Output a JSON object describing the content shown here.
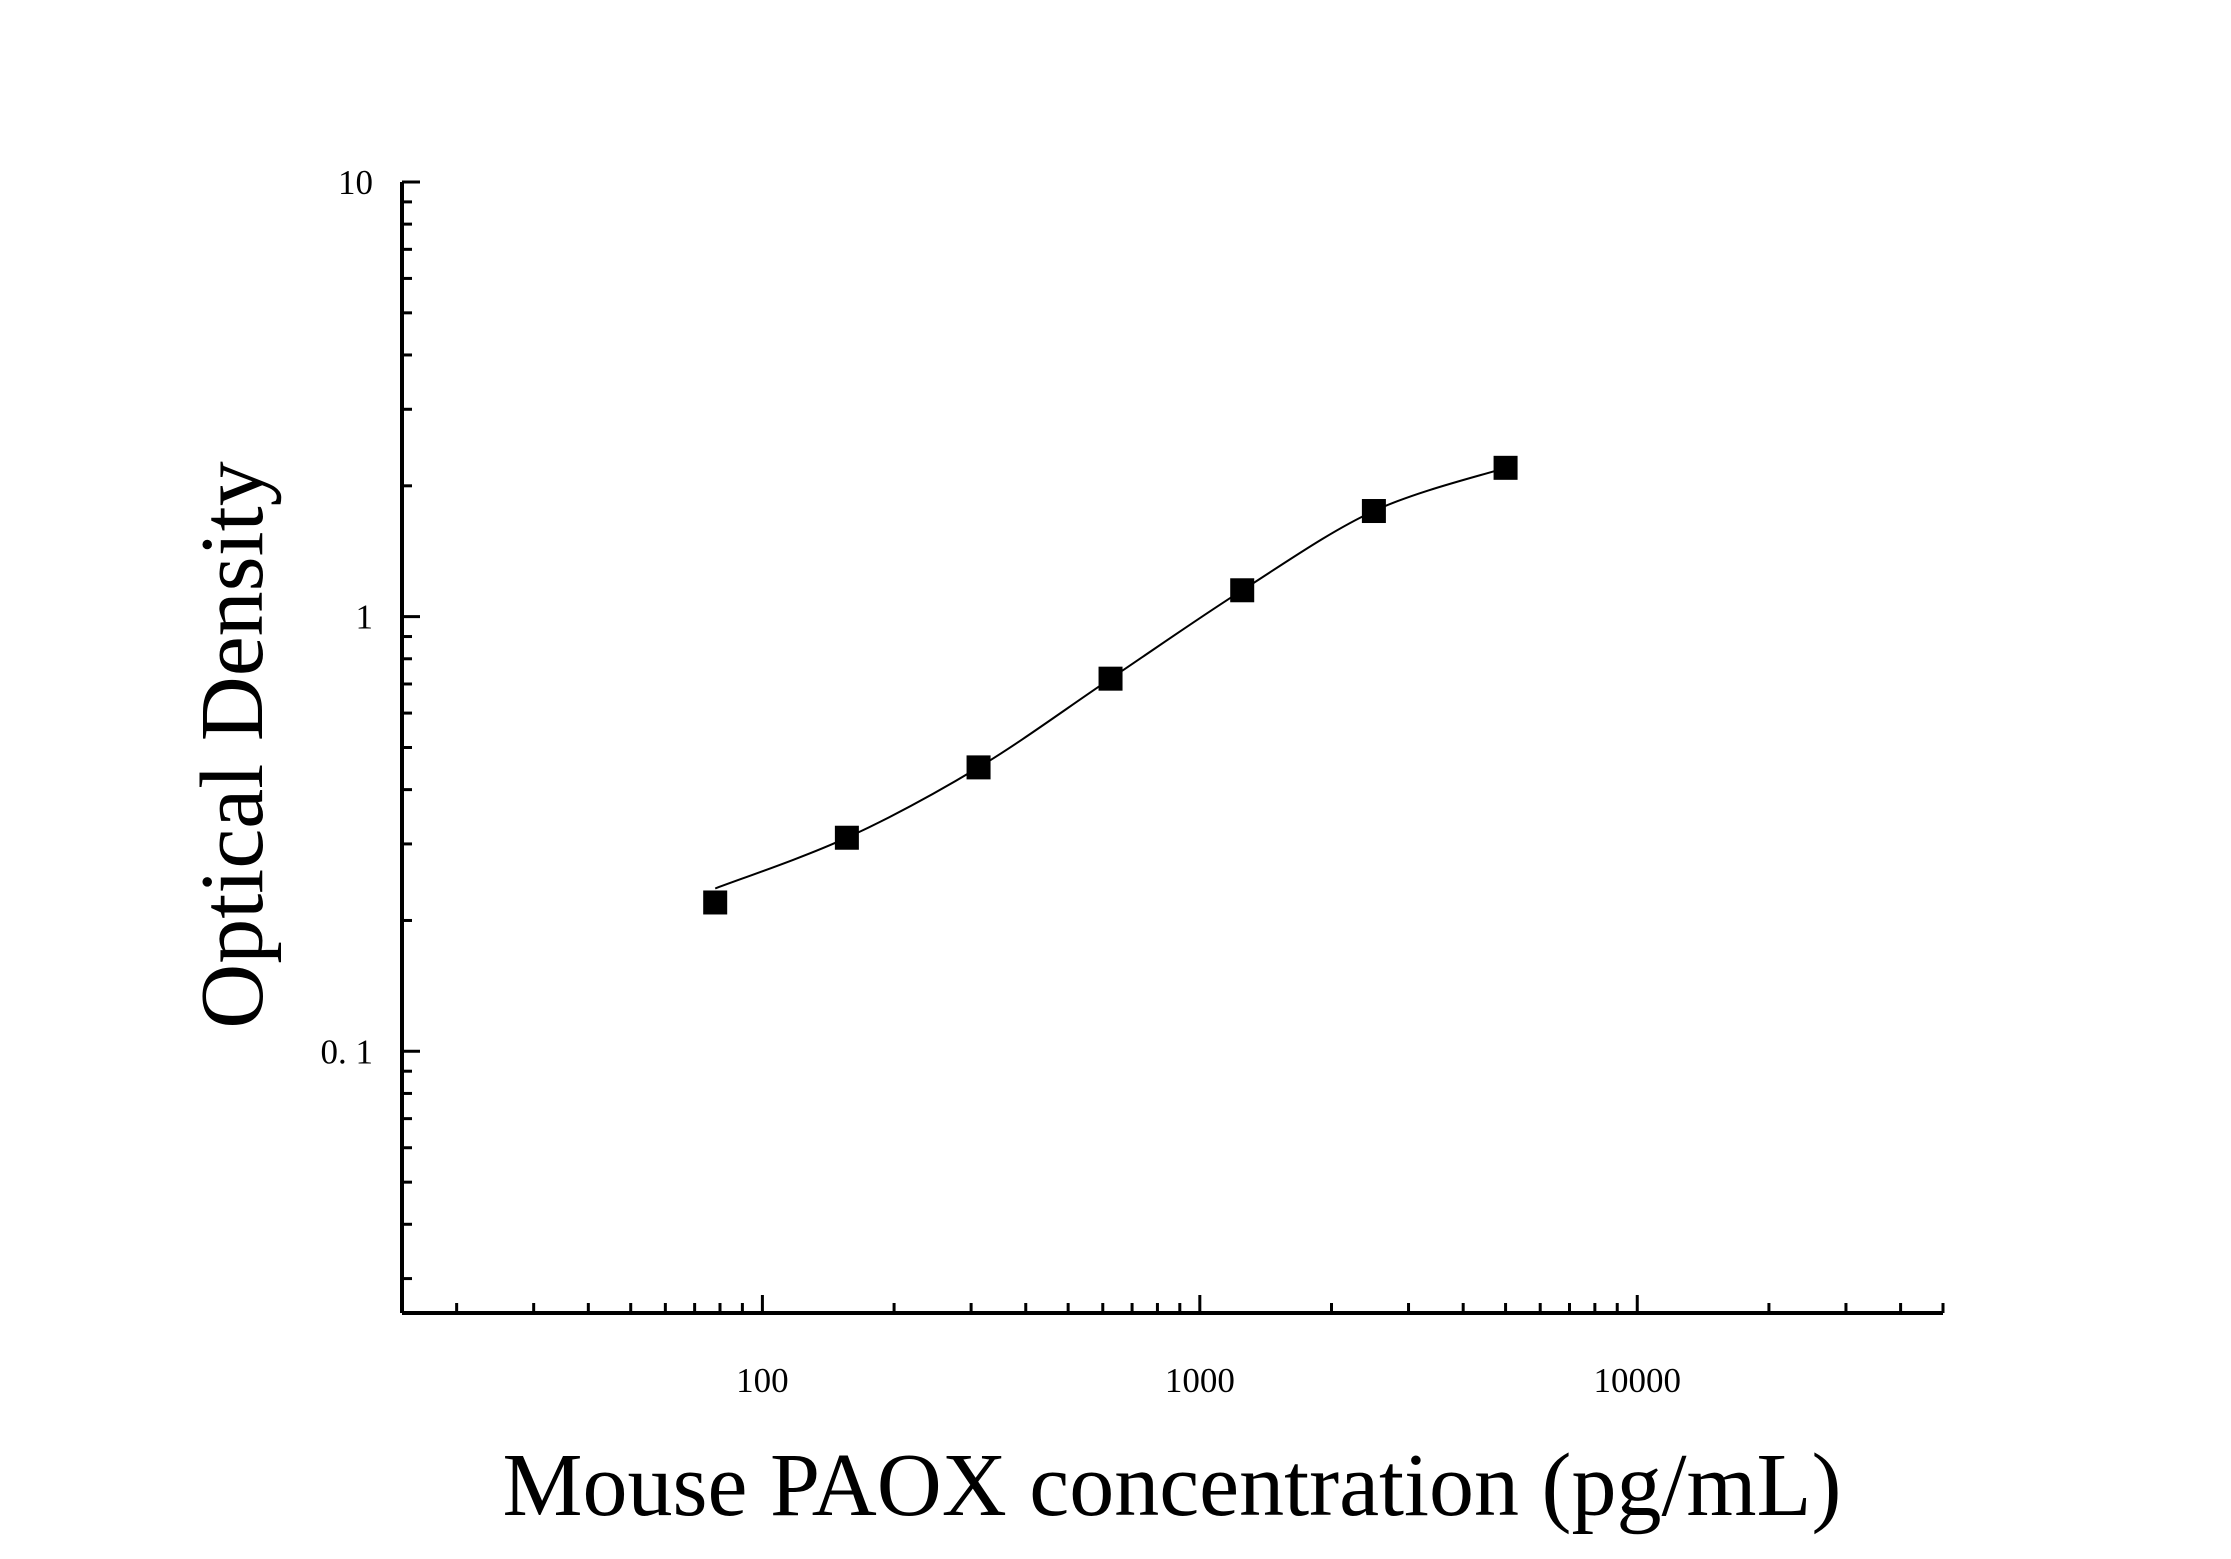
{
  "chart_data": {
    "type": "scatter",
    "title": "",
    "xlabel": "Mouse PAOX concentration (pg/mL)",
    "ylabel": "Optical Density",
    "x_scale": "log",
    "y_scale": "log",
    "xlim": [
      15,
      50000
    ],
    "ylim": [
      0.025,
      10
    ],
    "x_ticks": [
      {
        "value": 100,
        "label": "100"
      },
      {
        "value": 1000,
        "label": "1000"
      },
      {
        "value": 10000,
        "label": "10000"
      }
    ],
    "y_ticks": [
      {
        "value": 0.1,
        "label": "0. 1"
      },
      {
        "value": 1,
        "label": "1"
      },
      {
        "value": 10,
        "label": "10"
      }
    ],
    "grid": false,
    "legend": "none",
    "series": [
      {
        "marker": "square",
        "color": "#000000",
        "x": [
          78,
          156,
          312,
          625,
          1250,
          2500,
          5000
        ],
        "y": [
          0.22,
          0.31,
          0.45,
          0.72,
          1.15,
          1.75,
          2.2
        ]
      }
    ],
    "fit_curve": {
      "color": "#000000",
      "x_range": [
        78,
        5000
      ]
    }
  }
}
